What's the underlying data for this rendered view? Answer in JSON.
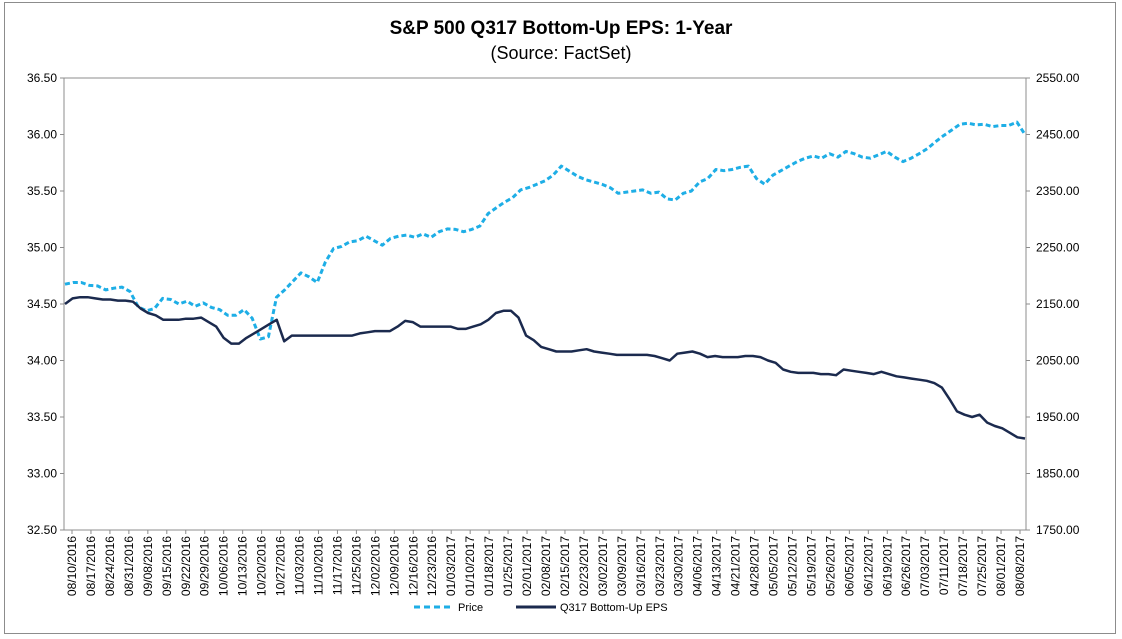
{
  "chart_data": {
    "type": "line",
    "title": "S&P 500 Q317 Bottom-Up EPS: 1-Year",
    "subtitle": "(Source: FactSet)",
    "y_left": {
      "ticks": [
        "32.50",
        "33.00",
        "33.50",
        "34.00",
        "34.50",
        "35.00",
        "35.50",
        "36.00",
        "36.50"
      ],
      "range": [
        32.5,
        36.5
      ]
    },
    "y_right": {
      "ticks": [
        "1750.00",
        "1850.00",
        "1950.00",
        "2050.00",
        "2150.00",
        "2250.00",
        "2350.00",
        "2450.00",
        "2550.00"
      ],
      "range": [
        1750,
        2550
      ]
    },
    "x_tick_labels": [
      "08/10/2016",
      "08/17/2016",
      "08/24/2016",
      "08/31/2016",
      "09/08/2016",
      "09/15/2016",
      "09/22/2016",
      "09/29/2016",
      "10/06/2016",
      "10/13/2016",
      "10/20/2016",
      "10/27/2016",
      "11/03/2016",
      "11/10/2016",
      "11/17/2016",
      "11/25/2016",
      "12/02/2016",
      "12/09/2016",
      "12/16/2016",
      "12/23/2016",
      "01/03/2017",
      "01/10/2017",
      "01/18/2017",
      "01/25/2017",
      "02/01/2017",
      "02/08/2017",
      "02/15/2017",
      "02/23/2017",
      "03/02/2017",
      "03/09/2017",
      "03/16/2017",
      "03/23/2017",
      "03/30/2017",
      "04/06/2017",
      "04/13/2017",
      "04/21/2017",
      "04/28/2017",
      "05/05/2017",
      "05/12/2017",
      "05/19/2017",
      "05/26/2017",
      "06/05/2017",
      "06/12/2017",
      "06/19/2017",
      "06/26/2017",
      "07/03/2017",
      "07/11/2017",
      "07/18/2017",
      "07/25/2017",
      "08/01/2017",
      "08/08/2017"
    ],
    "legend": {
      "position": "bottom",
      "entries": [
        "Price",
        "Q317 Bottom-Up EPS"
      ]
    },
    "grid": false,
    "series": [
      {
        "name": "Price",
        "axis": "right",
        "color": "#1EAEE6",
        "style": "dashed",
        "values": [
          2185,
          2188,
          2188,
          2183,
          2182,
          2175,
          2178,
          2180,
          2172,
          2145,
          2138,
          2142,
          2160,
          2158,
          2150,
          2155,
          2146,
          2152,
          2144,
          2140,
          2130,
          2130,
          2140,
          2125,
          2088,
          2092,
          2162,
          2175,
          2190,
          2205,
          2198,
          2188,
          2224,
          2248,
          2252,
          2260,
          2262,
          2270,
          2262,
          2254,
          2266,
          2270,
          2272,
          2268,
          2274,
          2268,
          2278,
          2283,
          2282,
          2278,
          2282,
          2288,
          2310,
          2320,
          2330,
          2338,
          2352,
          2356,
          2362,
          2368,
          2378,
          2394,
          2385,
          2376,
          2370,
          2366,
          2362,
          2356,
          2346,
          2348,
          2350,
          2352,
          2346,
          2348,
          2336,
          2334,
          2346,
          2350,
          2366,
          2372,
          2388,
          2386,
          2388,
          2392,
          2394,
          2372,
          2362,
          2378,
          2386,
          2394,
          2402,
          2408,
          2412,
          2408,
          2416,
          2410,
          2420,
          2416,
          2410,
          2408,
          2414,
          2420,
          2410,
          2402,
          2408,
          2416,
          2425,
          2437,
          2448,
          2458,
          2468,
          2470,
          2467,
          2468,
          2464,
          2466,
          2466,
          2472,
          2450
        ]
      },
      {
        "name": "Q317 Bottom-Up EPS",
        "axis": "left",
        "color": "#1B2A4E",
        "style": "solid",
        "values": [
          34.5,
          34.55,
          34.56,
          34.56,
          34.55,
          34.54,
          34.54,
          34.53,
          34.53,
          34.52,
          34.46,
          34.42,
          34.4,
          34.36,
          34.36,
          34.36,
          34.37,
          34.37,
          34.38,
          34.34,
          34.3,
          34.2,
          34.15,
          34.15,
          34.2,
          34.24,
          34.28,
          34.32,
          34.36,
          34.17,
          34.22,
          34.22,
          34.22,
          34.22,
          34.22,
          34.22,
          34.22,
          34.22,
          34.22,
          34.24,
          34.25,
          34.26,
          34.26,
          34.26,
          34.3,
          34.35,
          34.34,
          34.3,
          34.3,
          34.3,
          34.3,
          34.3,
          34.28,
          34.28,
          34.3,
          34.32,
          34.36,
          34.42,
          34.44,
          34.44,
          34.38,
          34.22,
          34.18,
          34.12,
          34.1,
          34.08,
          34.08,
          34.08,
          34.09,
          34.1,
          34.08,
          34.07,
          34.06,
          34.05,
          34.05,
          34.05,
          34.05,
          34.05,
          34.04,
          34.02,
          34.0,
          34.06,
          34.07,
          34.08,
          34.06,
          34.03,
          34.04,
          34.03,
          34.03,
          34.03,
          34.04,
          34.04,
          34.03,
          34.0,
          33.98,
          33.92,
          33.9,
          33.89,
          33.89,
          33.89,
          33.88,
          33.88,
          33.87,
          33.92,
          33.91,
          33.9,
          33.89,
          33.88,
          33.9,
          33.88,
          33.86,
          33.85,
          33.84,
          33.83,
          33.82,
          33.8,
          33.76,
          33.66,
          33.55,
          33.52,
          33.5,
          33.52,
          33.45,
          33.42,
          33.4,
          33.36,
          33.32,
          33.31
        ]
      }
    ]
  }
}
